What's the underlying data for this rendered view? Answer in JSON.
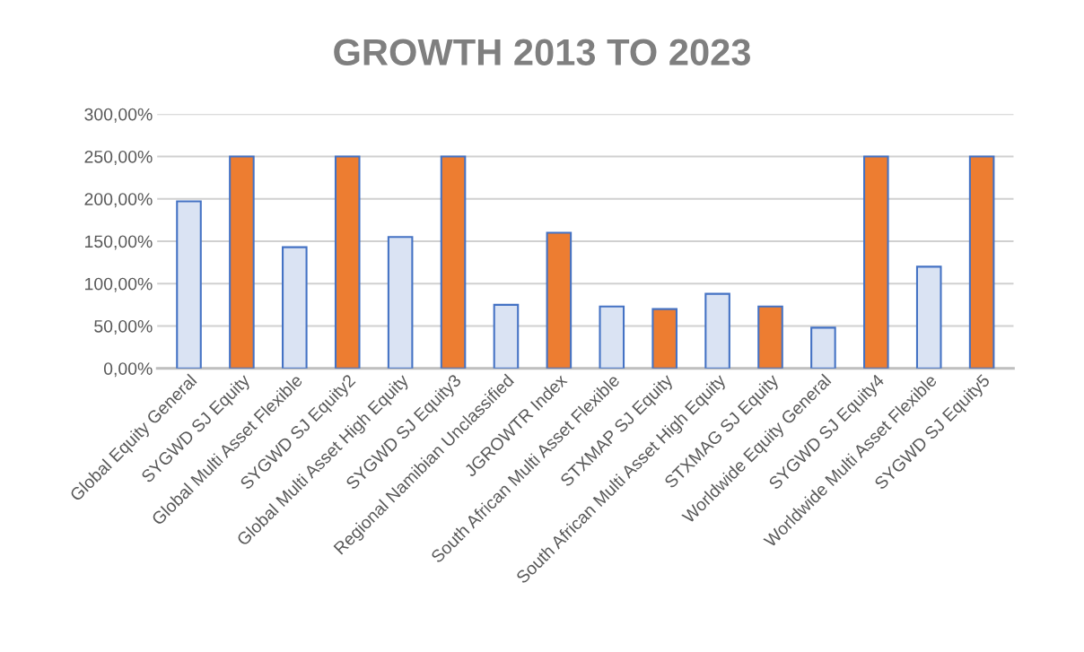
{
  "chart_data": {
    "type": "bar",
    "title": "GROWTH 2013 TO 2023",
    "categories": [
      "Global Equity General",
      "SYGWD SJ Equity",
      "Global Multi Asset Flexible",
      "SYGWD SJ Equity2",
      "Global Multi Asset High Equity",
      "SYGWD SJ Equity3",
      "Regional Namibian Unclassified",
      "JGROWTR Index",
      "South African Multi Asset Flexible",
      "STXMAP SJ Equity",
      "South African Multi Asset High Equity",
      "STXMAG SJ Equity",
      "Worldwide Equity General",
      "SYGWD SJ Equity4",
      "Worldwide Multi Asset Flexible",
      "SYGWD SJ Equity5"
    ],
    "values": [
      197,
      250,
      143,
      250,
      155,
      250,
      75,
      160,
      73,
      70,
      88,
      73,
      48,
      250,
      120,
      250
    ],
    "colors": [
      "#dae3f3",
      "#ed7d31",
      "#dae3f3",
      "#ed7d31",
      "#dae3f3",
      "#ed7d31",
      "#dae3f3",
      "#ed7d31",
      "#dae3f3",
      "#ed7d31",
      "#dae3f3",
      "#ed7d31",
      "#dae3f3",
      "#ed7d31",
      "#dae3f3",
      "#ed7d31"
    ],
    "ylim": [
      0,
      300
    ],
    "yticks": [
      {
        "value": 0,
        "label": "0,00%"
      },
      {
        "value": 50,
        "label": "50,00%"
      },
      {
        "value": 100,
        "label": "100,00%"
      },
      {
        "value": 150,
        "label": "150,00%"
      },
      {
        "value": 200,
        "label": "200,00%"
      },
      {
        "value": 250,
        "label": "250,00%"
      },
      {
        "value": 300,
        "label": "300,00%"
      }
    ],
    "grid": "y",
    "legend": false
  }
}
